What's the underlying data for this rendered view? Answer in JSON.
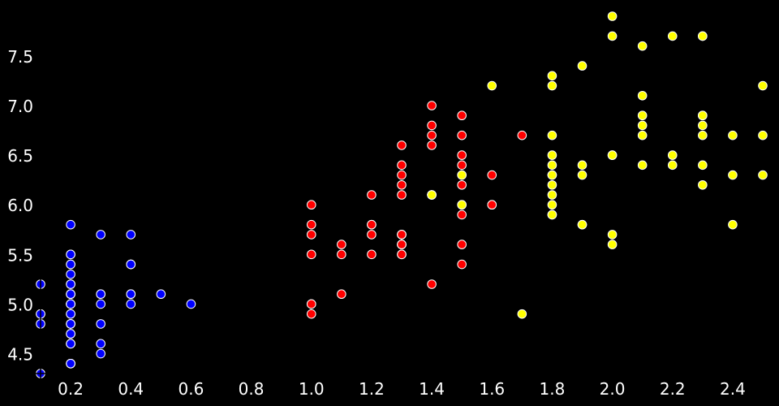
{
  "chart_data": {
    "type": "scatter",
    "title": "",
    "xlabel": "",
    "ylabel": "",
    "xlim": [
      0.1,
      2.5
    ],
    "ylim": [
      4.3,
      7.9
    ],
    "grid": false,
    "background": "#000000",
    "x_ticks": [
      "0.2",
      "0.4",
      "0.6",
      "0.8",
      "1.0",
      "1.2",
      "1.4",
      "1.6",
      "1.8",
      "2.0",
      "2.2",
      "2.4"
    ],
    "y_ticks": [
      "4.5",
      "5.0",
      "5.5",
      "6.0",
      "6.5",
      "7.0",
      "7.5"
    ],
    "series": [
      {
        "color": "#0000ff",
        "points": [
          [
            0.2,
            5.1
          ],
          [
            0.2,
            4.9
          ],
          [
            0.2,
            4.7
          ],
          [
            0.2,
            4.6
          ],
          [
            0.2,
            5.0
          ],
          [
            0.4,
            5.4
          ],
          [
            0.3,
            4.6
          ],
          [
            0.2,
            5.0
          ],
          [
            0.2,
            4.4
          ],
          [
            0.1,
            4.9
          ],
          [
            0.2,
            5.4
          ],
          [
            0.2,
            4.8
          ],
          [
            0.1,
            4.8
          ],
          [
            0.1,
            4.3
          ],
          [
            0.2,
            5.8
          ],
          [
            0.4,
            5.7
          ],
          [
            0.4,
            5.4
          ],
          [
            0.3,
            5.1
          ],
          [
            0.3,
            5.7
          ],
          [
            0.3,
            5.1
          ],
          [
            0.2,
            5.4
          ],
          [
            0.4,
            5.1
          ],
          [
            0.2,
            4.6
          ],
          [
            0.5,
            5.1
          ],
          [
            0.2,
            4.8
          ],
          [
            0.2,
            5.0
          ],
          [
            0.4,
            5.0
          ],
          [
            0.2,
            5.2
          ],
          [
            0.2,
            5.2
          ],
          [
            0.2,
            4.7
          ],
          [
            0.2,
            4.8
          ],
          [
            0.4,
            5.4
          ],
          [
            0.1,
            5.2
          ],
          [
            0.2,
            5.5
          ],
          [
            0.2,
            4.9
          ],
          [
            0.2,
            5.0
          ],
          [
            0.2,
            5.5
          ],
          [
            0.1,
            4.9
          ],
          [
            0.2,
            4.4
          ],
          [
            0.2,
            5.1
          ],
          [
            0.3,
            5.0
          ],
          [
            0.3,
            4.5
          ],
          [
            0.2,
            4.4
          ],
          [
            0.6,
            5.0
          ],
          [
            0.4,
            5.1
          ],
          [
            0.3,
            4.8
          ],
          [
            0.2,
            5.1
          ],
          [
            0.2,
            4.6
          ],
          [
            0.2,
            5.3
          ],
          [
            0.2,
            5.0
          ]
        ]
      },
      {
        "color": "#ff0000",
        "points": [
          [
            1.4,
            7.0
          ],
          [
            1.5,
            6.4
          ],
          [
            1.5,
            6.9
          ],
          [
            1.3,
            5.5
          ],
          [
            1.5,
            6.5
          ],
          [
            1.3,
            5.7
          ],
          [
            1.6,
            6.3
          ],
          [
            1.0,
            4.9
          ],
          [
            1.3,
            6.6
          ],
          [
            1.4,
            5.2
          ],
          [
            1.0,
            5.0
          ],
          [
            1.5,
            5.9
          ],
          [
            1.0,
            6.0
          ],
          [
            1.4,
            6.1
          ],
          [
            1.3,
            5.6
          ],
          [
            1.4,
            6.7
          ],
          [
            1.5,
            5.6
          ],
          [
            1.0,
            5.8
          ],
          [
            1.5,
            6.2
          ],
          [
            1.1,
            5.6
          ],
          [
            1.8,
            5.9
          ],
          [
            1.3,
            6.1
          ],
          [
            1.5,
            6.3
          ],
          [
            1.2,
            6.1
          ],
          [
            1.3,
            6.4
          ],
          [
            1.4,
            6.6
          ],
          [
            1.4,
            6.8
          ],
          [
            1.7,
            6.7
          ],
          [
            1.5,
            6.0
          ],
          [
            1.0,
            5.7
          ],
          [
            1.1,
            5.5
          ],
          [
            1.0,
            5.5
          ],
          [
            1.2,
            5.8
          ],
          [
            1.6,
            6.0
          ],
          [
            1.5,
            5.4
          ],
          [
            1.6,
            6.0
          ],
          [
            1.5,
            6.7
          ],
          [
            1.3,
            6.3
          ],
          [
            1.3,
            5.6
          ],
          [
            1.3,
            5.5
          ],
          [
            1.2,
            5.5
          ],
          [
            1.4,
            6.1
          ],
          [
            1.2,
            5.8
          ],
          [
            1.0,
            5.0
          ],
          [
            1.3,
            5.6
          ],
          [
            1.2,
            5.7
          ],
          [
            1.3,
            5.7
          ],
          [
            1.3,
            6.2
          ],
          [
            1.1,
            5.1
          ],
          [
            1.3,
            5.7
          ]
        ]
      },
      {
        "color": "#ffff00",
        "points": [
          [
            2.5,
            6.3
          ],
          [
            1.9,
            5.8
          ],
          [
            2.1,
            7.1
          ],
          [
            1.8,
            6.3
          ],
          [
            2.2,
            6.5
          ],
          [
            2.1,
            7.6
          ],
          [
            1.7,
            4.9
          ],
          [
            1.8,
            7.3
          ],
          [
            1.8,
            6.7
          ],
          [
            2.5,
            7.2
          ],
          [
            2.0,
            6.5
          ],
          [
            1.9,
            6.4
          ],
          [
            2.1,
            6.8
          ],
          [
            2.0,
            5.7
          ],
          [
            2.4,
            5.8
          ],
          [
            2.3,
            6.4
          ],
          [
            1.8,
            6.5
          ],
          [
            2.2,
            7.7
          ],
          [
            2.3,
            7.7
          ],
          [
            1.5,
            6.0
          ],
          [
            2.3,
            6.9
          ],
          [
            2.0,
            5.6
          ],
          [
            2.0,
            7.7
          ],
          [
            1.8,
            6.3
          ],
          [
            2.1,
            6.7
          ],
          [
            1.8,
            7.2
          ],
          [
            1.8,
            6.2
          ],
          [
            1.8,
            6.1
          ],
          [
            2.1,
            6.4
          ],
          [
            1.6,
            7.2
          ],
          [
            1.9,
            7.4
          ],
          [
            2.0,
            7.9
          ],
          [
            2.2,
            6.4
          ],
          [
            1.5,
            6.3
          ],
          [
            1.4,
            6.1
          ],
          [
            2.3,
            7.7
          ],
          [
            2.4,
            6.3
          ],
          [
            1.8,
            6.4
          ],
          [
            1.8,
            6.0
          ],
          [
            2.1,
            6.9
          ],
          [
            2.4,
            6.7
          ],
          [
            2.3,
            6.9
          ],
          [
            1.9,
            5.8
          ],
          [
            2.3,
            6.8
          ],
          [
            2.5,
            6.7
          ],
          [
            2.3,
            6.7
          ],
          [
            1.9,
            6.3
          ],
          [
            2.0,
            6.5
          ],
          [
            2.3,
            6.2
          ],
          [
            1.8,
            5.9
          ]
        ]
      }
    ]
  }
}
